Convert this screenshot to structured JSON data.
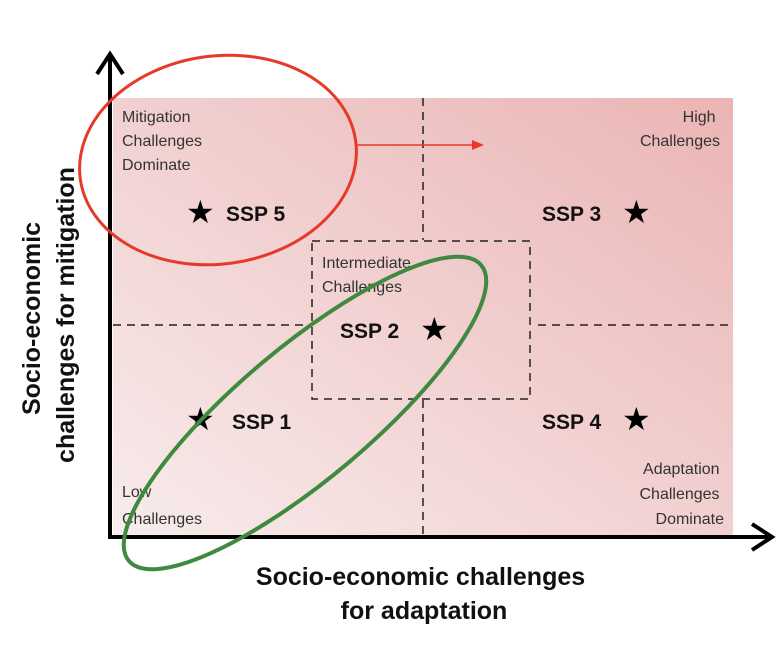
{
  "diagram": {
    "x_axis_label": [
      "Socio-economic challenges",
      "for adaptation"
    ],
    "y_axis_label": [
      "Socio-economic",
      "challenges for mitigation"
    ],
    "corners": {
      "top_left": [
        "Mitigation",
        "Challenges",
        "Dominate"
      ],
      "top_right": [
        "High",
        "Challenges"
      ],
      "bottom_left": [
        "Low",
        "Challenges"
      ],
      "bottom_right": [
        "Adaptation",
        "Challenges",
        "Dominate"
      ],
      "center": [
        "Intermediate",
        "Challenges"
      ]
    },
    "scenarios": [
      "SSP 1",
      "SSP 2",
      "SSP 3",
      "SSP 4",
      "SSP 5"
    ],
    "star_icon": "star-icon",
    "colors": {
      "background_light": "#f7e7e7",
      "background_dark": "#ebb3b3",
      "highlight_red": "#e53a2a",
      "highlight_green": "#3f8a3f",
      "axis": "#000000"
    }
  }
}
